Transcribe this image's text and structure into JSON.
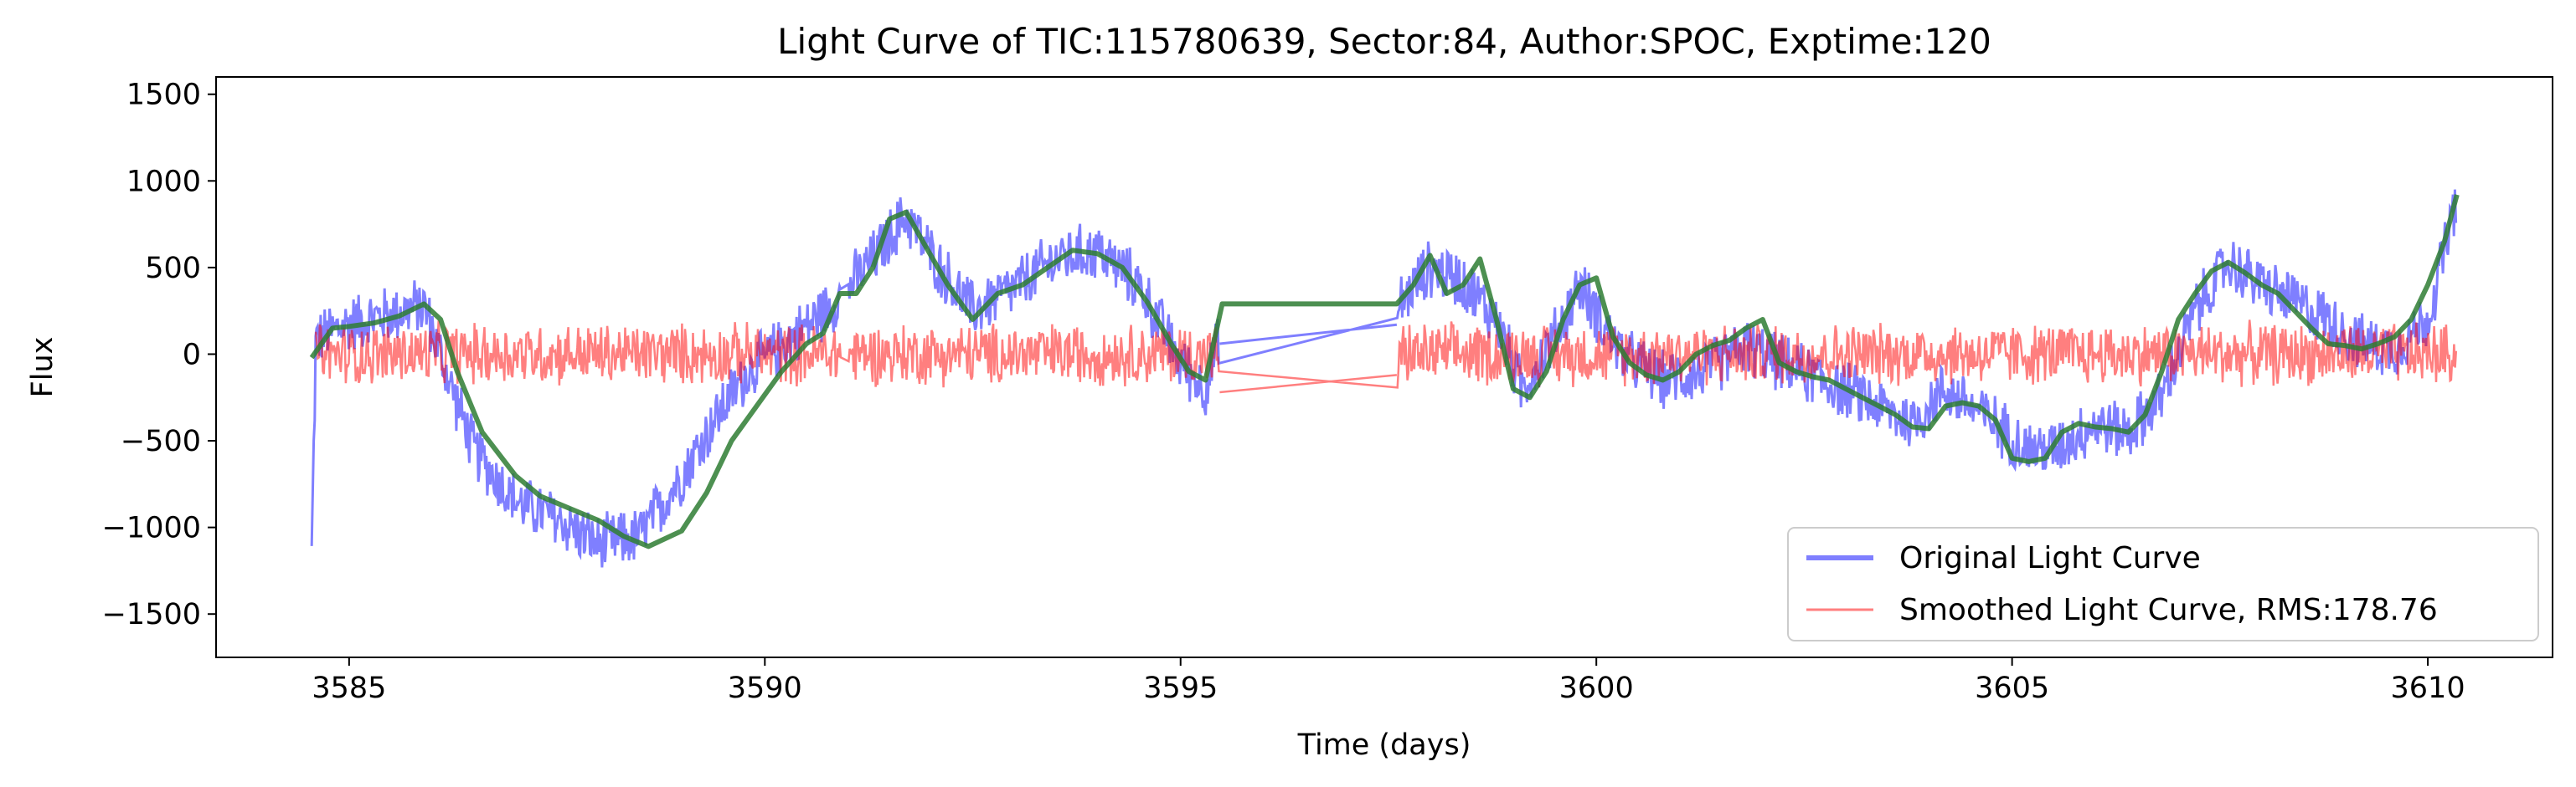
{
  "chart_data": {
    "type": "line",
    "title": "Light Curve of TIC:115780639, Sector:84, Author:SPOC, Exptime:120",
    "xlabel": "Time (days)",
    "ylabel": "Flux",
    "xlim": [
      3583.4,
      3611.5
    ],
    "ylim": [
      -1750,
      1600
    ],
    "xticks": [
      3585,
      3590,
      3595,
      3600,
      3605,
      3610
    ],
    "yticks": [
      -1500,
      -1000,
      -500,
      0,
      500,
      1000,
      1500
    ],
    "legend_position": "lower right",
    "grid": false,
    "series": [
      {
        "name": "Original Light Curve",
        "color": "#0000ff",
        "opacity": 0.5,
        "trend_x": [
          3584.55,
          3584.6,
          3585.0,
          3585.5,
          3585.9,
          3586.2,
          3586.5,
          3587.0,
          3587.5,
          3588.0,
          3588.5,
          3589.0,
          3589.5,
          3589.8,
          3590.2,
          3590.6,
          3590.9,
          3591.3,
          3591.7,
          3592.1,
          3592.5,
          3593.0,
          3593.5,
          3594.0,
          3594.5,
          3595.0,
          3595.3,
          3595.45,
          3595.5,
          3597.6,
          3597.65,
          3598.0,
          3598.4,
          3598.8,
          3599.1,
          3599.5,
          3599.8,
          3600.3,
          3600.8,
          3601.3,
          3601.8,
          3602.2,
          3602.7,
          3603.2,
          3603.8,
          3604.2,
          3604.8,
          3605.2,
          3605.5,
          3606.0,
          3606.4,
          3606.8,
          3607.2,
          3607.6,
          3608.0,
          3608.4,
          3608.8,
          3609.2,
          3609.6,
          3610.0,
          3610.35
        ],
        "trend_y": [
          -1150,
          80,
          180,
          230,
          280,
          -150,
          -550,
          -850,
          -950,
          -1100,
          -1050,
          -700,
          -300,
          -100,
          50,
          200,
          330,
          550,
          800,
          500,
          250,
          380,
          550,
          600,
          400,
          -50,
          -200,
          60,
          80,
          180,
          300,
          500,
          420,
          200,
          -200,
          100,
          400,
          0,
          -150,
          -100,
          50,
          -50,
          -150,
          -250,
          -400,
          -200,
          -400,
          -550,
          -550,
          -400,
          -450,
          -250,
          250,
          530,
          400,
          300,
          200,
          60,
          30,
          200,
          900
        ],
        "noise_amplitude": 190
      },
      {
        "name": "Smoothed Light Curve, RMS:178.76",
        "color": "#ff0000",
        "opacity": 0.5,
        "center_x": [
          3584.6,
          3590.9,
          3591.0,
          3595.45,
          3595.5,
          3597.6,
          3597.65,
          3610.35
        ],
        "center_y": [
          0,
          0,
          0,
          0,
          -200,
          -120,
          0,
          0
        ],
        "noise_amplitude": 200
      },
      {
        "name": "",
        "color": "#2e7d32",
        "opacity": 0.85,
        "x": [
          3584.55,
          3584.8,
          3585.0,
          3585.3,
          3585.6,
          3585.9,
          3586.1,
          3586.3,
          3586.6,
          3587.0,
          3587.3,
          3587.7,
          3588.0,
          3588.3,
          3588.6,
          3589.0,
          3589.3,
          3589.6,
          3589.9,
          3590.2,
          3590.5,
          3590.7,
          3590.9,
          3591.1,
          3591.3,
          3591.5,
          3591.7,
          3591.9,
          3592.2,
          3592.5,
          3592.8,
          3593.1,
          3593.4,
          3593.7,
          3594.0,
          3594.3,
          3594.6,
          3594.9,
          3595.1,
          3595.3,
          3595.5,
          3597.6,
          3597.8,
          3598.0,
          3598.2,
          3598.4,
          3598.6,
          3598.8,
          3599.0,
          3599.2,
          3599.4,
          3599.6,
          3599.8,
          3600.0,
          3600.2,
          3600.4,
          3600.6,
          3600.8,
          3601.0,
          3601.2,
          3601.4,
          3601.6,
          3601.8,
          3602.0,
          3602.2,
          3602.4,
          3602.6,
          3602.8,
          3603.0,
          3603.2,
          3603.4,
          3603.6,
          3603.8,
          3604.0,
          3604.2,
          3604.4,
          3604.6,
          3604.8,
          3605.0,
          3605.2,
          3605.4,
          3605.6,
          3605.8,
          3606.0,
          3606.2,
          3606.4,
          3606.6,
          3606.8,
          3607.0,
          3607.2,
          3607.4,
          3607.6,
          3607.8,
          3608.0,
          3608.2,
          3608.4,
          3608.6,
          3608.8,
          3609.0,
          3609.2,
          3609.4,
          3609.6,
          3609.8,
          3610.0,
          3610.2,
          3610.35
        ],
        "y": [
          -20,
          150,
          160,
          180,
          220,
          290,
          200,
          -100,
          -450,
          -700,
          -820,
          -900,
          -960,
          -1050,
          -1110,
          -1020,
          -800,
          -500,
          -300,
          -100,
          60,
          120,
          350,
          350,
          500,
          780,
          820,
          650,
          400,
          200,
          350,
          400,
          500,
          600,
          580,
          500,
          300,
          50,
          -100,
          -150,
          290,
          290,
          400,
          570,
          350,
          400,
          550,
          200,
          -200,
          -250,
          -100,
          200,
          400,
          440,
          100,
          -50,
          -120,
          -150,
          -100,
          0,
          50,
          80,
          150,
          200,
          -50,
          -100,
          -130,
          -150,
          -200,
          -250,
          -300,
          -350,
          -420,
          -430,
          -300,
          -280,
          -300,
          -380,
          -600,
          -620,
          -600,
          -450,
          -400,
          -420,
          -430,
          -450,
          -350,
          -100,
          200,
          350,
          480,
          530,
          470,
          400,
          350,
          250,
          150,
          60,
          50,
          30,
          60,
          100,
          200,
          400,
          650,
          920
        ]
      }
    ]
  }
}
